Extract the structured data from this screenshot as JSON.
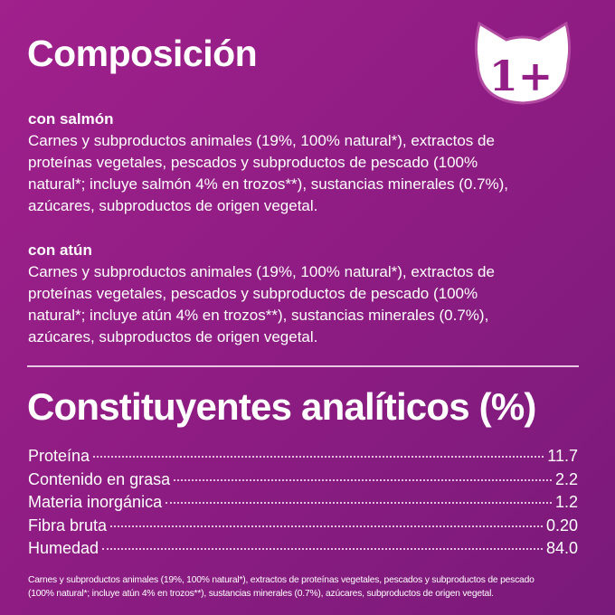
{
  "title": "Composición",
  "badge": {
    "text": "1+",
    "icon": "cat-head-icon",
    "color": "#ffffff"
  },
  "sections": [
    {
      "heading": "con salmón",
      "lines": [
        "Carnes y subproductos animales (19%, 100% natural*), extractos de",
        "proteínas vegetales, pescados y subproductos de pescado (100%",
        "natural*; incluye salmón 4% en trozos**), sustancias minerales (0.7%),",
        "azúcares, subproductos de origen vegetal."
      ]
    },
    {
      "heading": "con atún",
      "lines": [
        "Carnes y subproductos animales (19%, 100% natural*), extractos de",
        "proteínas vegetales, pescados y subproductos de pescado (100%",
        "natural*; incluye atún 4% en trozos**), sustancias minerales (0.7%),",
        "azúcares, subproductos de origen vegetal."
      ]
    }
  ],
  "analysis_title": "Constituyentes analíticos (%)",
  "analysis": [
    {
      "label": "Proteína",
      "value": "11.7"
    },
    {
      "label": "Contenido en grasa",
      "value": "2.2"
    },
    {
      "label": "Materia inorgánica",
      "value": "1.2"
    },
    {
      "label": "Fibra bruta",
      "value": "0.20"
    },
    {
      "label": "Humedad",
      "value": "84.0"
    }
  ],
  "footnote": [
    "Carnes y subproductos animales (19%, 100% natural*), extractos de proteínas vegetales, pescados y subproductos de pescado",
    "(100% natural*; incluye atún 4% en trozos**), sustancias minerales (0.7%), azúcares, subproductos de origen vegetal."
  ],
  "colors": {
    "background": "#931e85",
    "text": "#ffffff",
    "badge_text": "#931e85"
  }
}
